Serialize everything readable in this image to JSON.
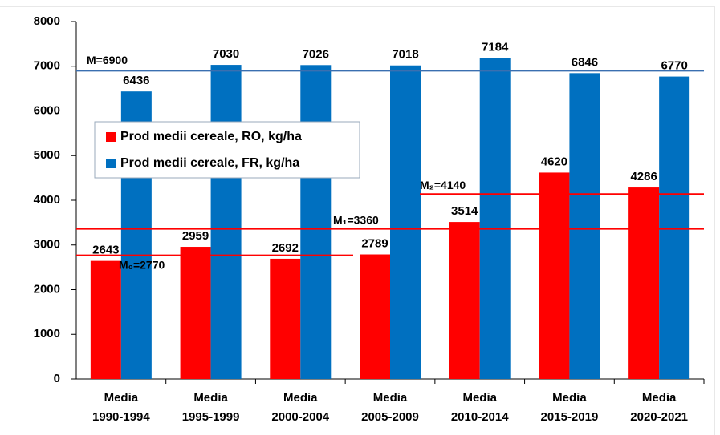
{
  "chart_data": {
    "type": "bar",
    "categories": [
      "Media 1990-1994",
      "Media 1995-1999",
      "Media 2000-2004",
      "Media 2005-2009",
      "Media 2010-2014",
      "Media 2015-2019",
      "Media 2020-2021"
    ],
    "series": [
      {
        "name": "Prod medii cereale, RO, kg/ha",
        "color": "#ff0000",
        "values": [
          2643,
          2959,
          2692,
          2789,
          3514,
          4620,
          4286
        ]
      },
      {
        "name": "Prod medii cereale, FR, kg/ha",
        "color": "#0070c0",
        "values": [
          6436,
          7030,
          7026,
          7018,
          7184,
          6846,
          6770
        ]
      }
    ],
    "reference_lines": [
      {
        "label": "M=6900",
        "value": 6900,
        "color": "#3a6fb0"
      },
      {
        "label": "M₁=3360",
        "value": 3360,
        "color": "#ff0000"
      },
      {
        "label": "M₀=2770",
        "value": 2770,
        "color": "#ff0000"
      },
      {
        "label": "M₂=4140",
        "value": 4140,
        "color": "#ff0000"
      }
    ],
    "ylim": [
      0,
      8000
    ],
    "yticks": [
      0,
      1000,
      2000,
      3000,
      4000,
      5000,
      6000,
      7000,
      8000
    ],
    "grid": false,
    "legend": "upper-left"
  }
}
